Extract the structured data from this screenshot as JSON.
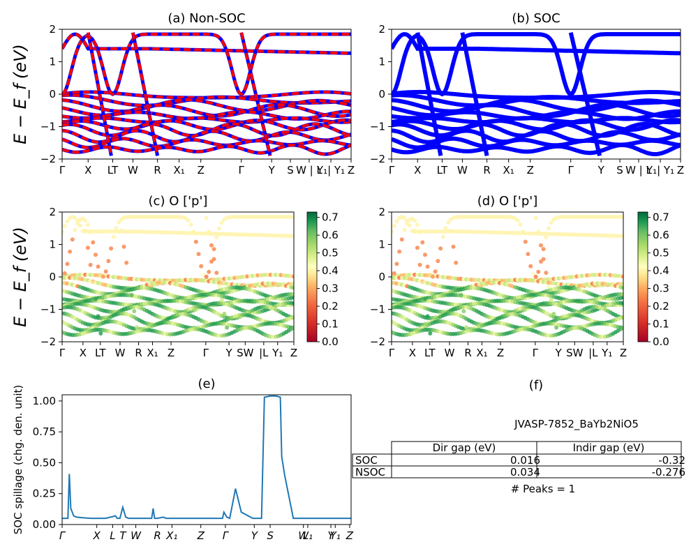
{
  "chart_data": [
    {
      "id": "a",
      "type": "line",
      "title": "(a) Non-SOC",
      "ylabel": "E − E_f (eV)",
      "ylim": [
        -2,
        2
      ],
      "yticks": [
        "−2",
        "−1",
        "0",
        "1",
        "2"
      ],
      "kpath": [
        "Γ",
        "X",
        "L",
        "T",
        "W",
        "R",
        "X1",
        "Z",
        "Γ",
        "Y",
        "S",
        "W",
        "|",
        "L",
        "Y1",
        "|",
        "Y1",
        "Z"
      ],
      "kticks_display": [
        "Γ",
        "X",
        "LT",
        "W",
        "R",
        "X₁",
        "Z",
        "Γ",
        "Y",
        "S",
        "W | L",
        "Y₁| Y₁",
        "Z"
      ],
      "series": [
        {
          "style": "blue solid"
        },
        {
          "style": "red dashed"
        }
      ],
      "band_energies_at_gamma": [
        1.38,
        0.0,
        -0.25,
        -0.45,
        -0.6,
        -0.8,
        -1.0,
        -1.3,
        -1.55,
        -1.75
      ]
    },
    {
      "id": "b",
      "type": "line",
      "title": "(b) SOC",
      "ylim": [
        -2,
        2
      ],
      "yticks": [
        "−2",
        "−1",
        "0",
        "1",
        "2"
      ],
      "kticks_display": [
        "Γ",
        "X",
        "LT",
        "W",
        "R",
        "X₁",
        "Z",
        "Γ",
        "Y",
        "S",
        "W | L",
        "Y₁| Y₁",
        "Z"
      ],
      "series": [
        {
          "style": "blue solid thick"
        }
      ]
    },
    {
      "id": "c",
      "type": "scatter",
      "title": "(c)  O ['p']",
      "ylabel": "E − E_f (eV)",
      "ylim": [
        -2,
        2
      ],
      "yticks": [
        "−2",
        "−1",
        "0",
        "1",
        "2"
      ],
      "kticks_display": [
        "Γ",
        "X",
        "LT",
        "W",
        "R",
        "X₁",
        "Z",
        "Γ",
        "Y",
        "SW",
        "|L",
        "Y₁",
        "Z"
      ],
      "colorbar": {
        "cmap": "RdYlGn",
        "ticks": [
          "0.0",
          "0.1",
          "0.2",
          "0.3",
          "0.4",
          "0.5",
          "0.6",
          "0.7"
        ],
        "range": [
          0,
          0.73
        ]
      }
    },
    {
      "id": "d",
      "type": "scatter",
      "title": "(d) O ['p']",
      "ylim": [
        -2,
        2
      ],
      "yticks": [
        "−2",
        "−1",
        "0",
        "1",
        "2"
      ],
      "kticks_display": [
        "Γ",
        "X",
        "LT",
        "W",
        "R",
        "X₁",
        "Z",
        "Γ",
        "Y",
        "SW",
        "|L",
        "Y₁",
        "Z"
      ],
      "colorbar": {
        "cmap": "RdYlGn",
        "ticks": [
          "0.0",
          "0.1",
          "0.2",
          "0.3",
          "0.4",
          "0.5",
          "0.6",
          "0.7"
        ],
        "range": [
          0,
          0.73
        ]
      }
    },
    {
      "id": "e",
      "type": "line",
      "title": "(e)",
      "ylabel": "SOC spillage (chg. den. unit)",
      "ylim": [
        0,
        1.05
      ],
      "yticks": [
        "0.00",
        "0.25",
        "0.50",
        "0.75",
        "1.00"
      ],
      "kticks_display": [
        "Γ",
        "X",
        "L",
        "T",
        "W",
        "R",
        "X₁",
        "Z",
        "Γ",
        "Y",
        "S",
        "W",
        "L₁",
        "Y",
        "Y₁",
        "Z"
      ],
      "x": [
        0,
        0.018,
        0.02,
        0.025,
        0.03,
        0.04,
        0.05,
        0.07,
        0.1,
        0.15,
        0.185,
        0.19,
        0.2,
        0.21,
        0.22,
        0.23,
        0.24,
        0.25,
        0.28,
        0.31,
        0.315,
        0.32,
        0.325,
        0.33,
        0.35,
        0.36,
        0.365,
        0.37,
        0.38,
        0.4,
        0.45,
        0.5,
        0.54,
        0.55,
        0.555,
        0.56,
        0.57,
        0.58,
        0.6,
        0.62,
        0.66,
        0.67,
        0.68,
        0.69,
        0.7,
        0.72,
        0.74,
        0.755,
        0.76,
        0.77,
        0.8,
        0.85,
        0.9,
        0.95,
        1.0
      ],
      "values": [
        0.05,
        0.05,
        0.05,
        0.41,
        0.13,
        0.07,
        0.06,
        0.055,
        0.05,
        0.05,
        0.07,
        0.05,
        0.05,
        0.14,
        0.06,
        0.05,
        0.05,
        0.05,
        0.05,
        0.05,
        0.13,
        0.05,
        0.05,
        0.05,
        0.06,
        0.05,
        0.05,
        0.05,
        0.05,
        0.05,
        0.05,
        0.05,
        0.05,
        0.05,
        0.05,
        0.1,
        0.06,
        0.05,
        0.29,
        0.1,
        0.05,
        0.05,
        0.05,
        0.05,
        1.03,
        1.04,
        1.04,
        1.03,
        0.55,
        0.4,
        0.05,
        0.05,
        0.05,
        0.05,
        0.05
      ]
    }
  ],
  "table": {
    "title": "(f)",
    "material": "JVASP-7852_BaYb2NiO5",
    "columns": [
      "Dir gap (eV)",
      "Indir gap (eV)"
    ],
    "rows": [
      {
        "label": "SOC",
        "dir": "0.016",
        "indir": "-0.32"
      },
      {
        "label": "NSOC",
        "dir": "0.034",
        "indir": "-0.276"
      }
    ],
    "peaks": "# Peaks = 1"
  },
  "colors": {
    "blue": "#0000ff",
    "red": "#ff0000",
    "spillage": "#1f77b4"
  }
}
